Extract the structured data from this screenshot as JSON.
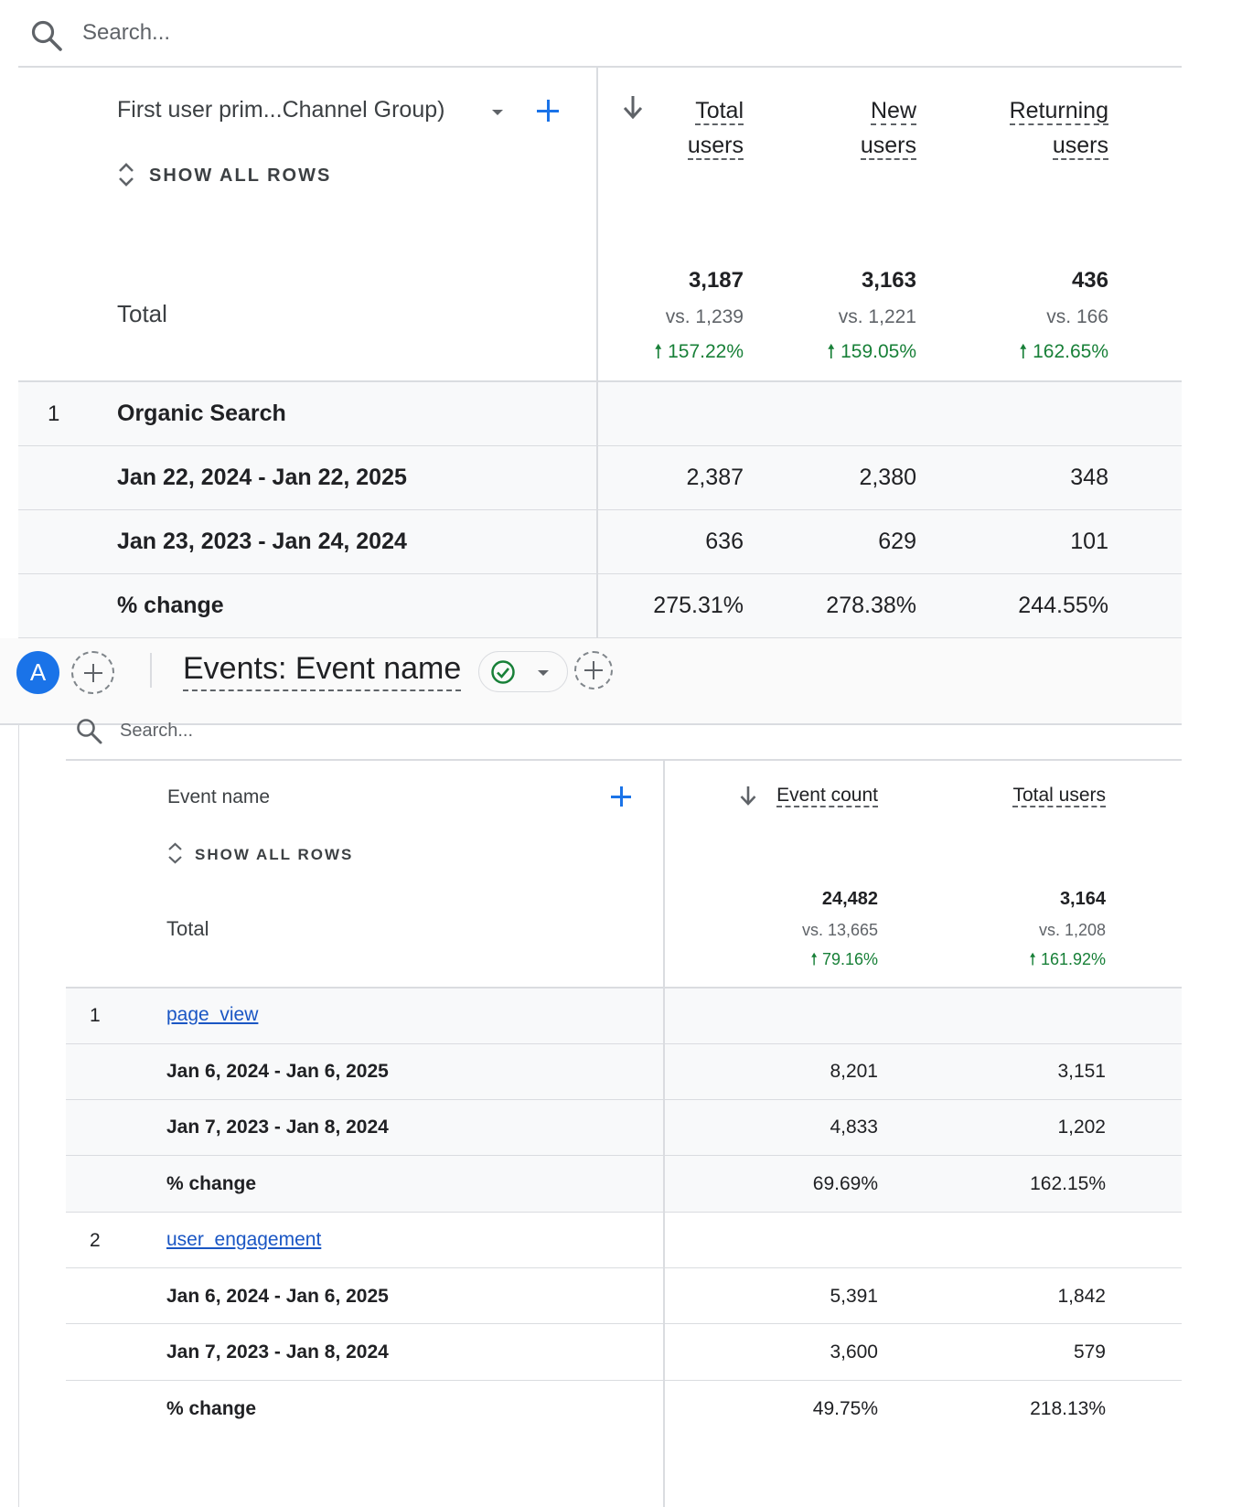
{
  "top_table": {
    "search_placeholder": "Search...",
    "dimension_label": "First user prim...Channel Group)",
    "show_all_rows": "SHOW ALL ROWS",
    "columns": [
      {
        "line1": "Total",
        "line2": "users"
      },
      {
        "line1": "New",
        "line2": "users"
      },
      {
        "line1": "Returning",
        "line2": "users"
      }
    ],
    "total_label": "Total",
    "totals": [
      {
        "value": "3,187",
        "vs": "vs. 1,239",
        "change": "157.22%"
      },
      {
        "value": "3,163",
        "vs": "vs. 1,221",
        "change": "159.05%"
      },
      {
        "value": "436",
        "vs": "vs. 166",
        "change": "162.65%"
      }
    ],
    "rows": [
      {
        "index": "1",
        "name": "Organic Search",
        "sub": [
          {
            "label": "Jan 22, 2024 - Jan 22, 2025",
            "values": [
              "2,387",
              "2,380",
              "348"
            ]
          },
          {
            "label": "Jan 23, 2023 - Jan 24, 2024",
            "values": [
              "636",
              "629",
              "101"
            ]
          },
          {
            "label": "% change",
            "values": [
              "275.31%",
              "278.38%",
              "244.55%"
            ]
          }
        ]
      }
    ]
  },
  "toolbar": {
    "avatar_letter": "A",
    "card_title": "Events: Event name"
  },
  "events_table": {
    "search_placeholder": "Search...",
    "dimension_label": "Event name",
    "show_all_rows": "SHOW ALL ROWS",
    "columns": [
      "Event count",
      "Total users"
    ],
    "total_label": "Total",
    "totals": [
      {
        "value": "24,482",
        "vs": "vs. 13,665",
        "change": "79.16%"
      },
      {
        "value": "3,164",
        "vs": "vs. 1,208",
        "change": "161.92%"
      }
    ],
    "rows": [
      {
        "index": "1",
        "name": "page_view",
        "sub": [
          {
            "label": "Jan 6, 2024 - Jan 6, 2025",
            "values": [
              "8,201",
              "3,151"
            ]
          },
          {
            "label": "Jan 7, 2023 - Jan 8, 2024",
            "values": [
              "4,833",
              "1,202"
            ]
          },
          {
            "label": "% change",
            "values": [
              "69.69%",
              "162.15%"
            ]
          }
        ]
      },
      {
        "index": "2",
        "name": "user_engagement",
        "sub": [
          {
            "label": "Jan 6, 2024 - Jan 6, 2025",
            "values": [
              "5,391",
              "1,842"
            ]
          },
          {
            "label": "Jan 7, 2023 - Jan 8, 2024",
            "values": [
              "3,600",
              "579"
            ]
          },
          {
            "label": "% change",
            "values": [
              "49.75%",
              "218.13%"
            ]
          }
        ]
      }
    ]
  },
  "colors": {
    "accent": "#1a73e8",
    "positive": "#188038",
    "link": "#1a56c4",
    "avatar": "#1a73e8",
    "row_band": "#f8f9fa"
  }
}
